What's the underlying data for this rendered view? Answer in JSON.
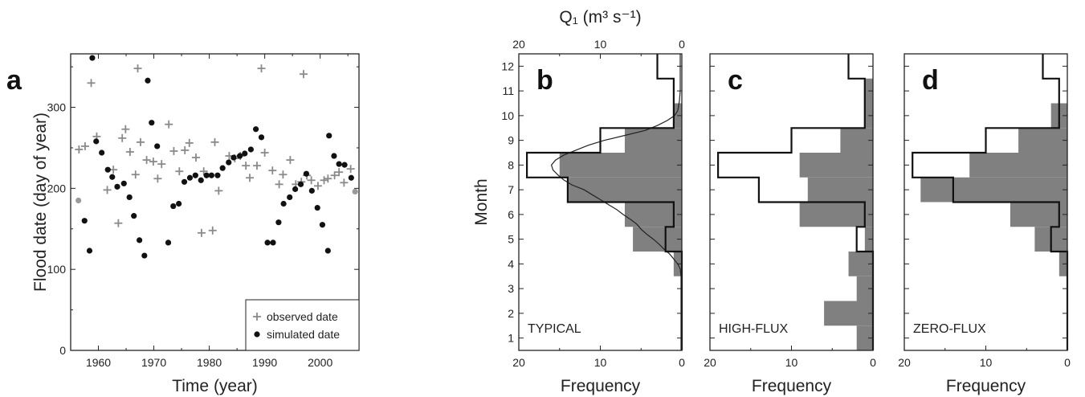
{
  "chart_data": [
    {
      "type": "scatter",
      "panel_label": "a",
      "xlabel": "Time (year)",
      "ylabel": "Flood date (day of year)",
      "xlim": [
        1955,
        2007
      ],
      "ylim": [
        0,
        366
      ],
      "xticks": [
        1960,
        1970,
        1980,
        1990,
        2000
      ],
      "yticks": [
        0,
        100,
        200,
        300
      ],
      "legend_placement": "bottom-right",
      "series": [
        {
          "name": "observed date",
          "marker": "plus",
          "color": "#8a8a8a",
          "points": [
            [
              1956.5,
              248
            ],
            [
              1957.6,
              252
            ],
            [
              1958.7,
              330
            ],
            [
              1959.7,
              264
            ],
            [
              1961.6,
              198
            ],
            [
              1962.7,
              223
            ],
            [
              1963.6,
              157
            ],
            [
              1964.3,
              262
            ],
            [
              1964.9,
              273
            ],
            [
              1965.7,
              245
            ],
            [
              1966.7,
              217
            ],
            [
              1967.1,
              348
            ],
            [
              1967.6,
              257
            ],
            [
              1968.7,
              235
            ],
            [
              1969.9,
              233
            ],
            [
              1970.7,
              212
            ],
            [
              1971.4,
              230
            ],
            [
              1972.7,
              279
            ],
            [
              1973.6,
              246
            ],
            [
              1974.6,
              221
            ],
            [
              1975.6,
              247
            ],
            [
              1976.4,
              256
            ],
            [
              1977.6,
              238
            ],
            [
              1978.6,
              145
            ],
            [
              1979.0,
              221
            ],
            [
              1980.6,
              148
            ],
            [
              1981.0,
              257
            ],
            [
              1981.7,
              197
            ],
            [
              1983.6,
              240
            ],
            [
              1984.6,
              237
            ],
            [
              1985.6,
              240
            ],
            [
              1986.6,
              228
            ],
            [
              1987.3,
              213
            ],
            [
              1988.6,
              228
            ],
            [
              1989.4,
              348
            ],
            [
              1990.0,
              244
            ],
            [
              1991.4,
              222
            ],
            [
              1992.6,
              205
            ],
            [
              1993.3,
              217
            ],
            [
              1994.6,
              235
            ],
            [
              1995.6,
              205
            ],
            [
              1996.6,
              208
            ],
            [
              1997.0,
              341
            ],
            [
              1997.6,
              216
            ],
            [
              1998.4,
              210
            ],
            [
              1999.6,
              203
            ],
            [
              2000.7,
              210
            ],
            [
              2001.4,
              212
            ],
            [
              2002.6,
              216
            ],
            [
              2003.4,
              220
            ],
            [
              2004.3,
              207
            ],
            [
              2005.5,
              224
            ]
          ]
        },
        {
          "name": "simulated date",
          "marker": "circle",
          "color": "#111111",
          "points": [
            [
              1957.5,
              160
            ],
            [
              1958.4,
              123
            ],
            [
              1958.9,
              361
            ],
            [
              1959.6,
              258
            ],
            [
              1960.6,
              244
            ],
            [
              1961.7,
              223
            ],
            [
              1962.5,
              214
            ],
            [
              1963.4,
              202
            ],
            [
              1964.6,
              206
            ],
            [
              1965.6,
              189
            ],
            [
              1966.4,
              166
            ],
            [
              1967.4,
              136
            ],
            [
              1968.3,
              117
            ],
            [
              1968.9,
              333
            ],
            [
              1969.6,
              281
            ],
            [
              1970.6,
              252
            ],
            [
              1972.6,
              133
            ],
            [
              1973.5,
              178
            ],
            [
              1974.5,
              181
            ],
            [
              1975.5,
              208
            ],
            [
              1976.5,
              213
            ],
            [
              1977.5,
              216
            ],
            [
              1978.5,
              210
            ],
            [
              1979.5,
              216
            ],
            [
              1980.4,
              216
            ],
            [
              1981.5,
              216
            ],
            [
              1982.4,
              225
            ],
            [
              1983.5,
              232
            ],
            [
              1984.4,
              238
            ],
            [
              1985.5,
              240
            ],
            [
              1986.4,
              243
            ],
            [
              1987.5,
              248
            ],
            [
              1988.4,
              273
            ],
            [
              1989.4,
              263
            ],
            [
              1990.5,
              133
            ],
            [
              1991.5,
              133
            ],
            [
              1992.5,
              158
            ],
            [
              1993.4,
              181
            ],
            [
              1994.5,
              189
            ],
            [
              1995.5,
              199
            ],
            [
              1996.5,
              205
            ],
            [
              1997.5,
              218
            ],
            [
              1998.5,
              197
            ],
            [
              1999.5,
              176
            ],
            [
              2000.4,
              155
            ],
            [
              2001.4,
              123
            ],
            [
              2001.6,
              265
            ],
            [
              2002.5,
              240
            ],
            [
              2003.4,
              230
            ],
            [
              2004.4,
              229
            ],
            [
              2005.6,
              213
            ]
          ]
        },
        {
          "name": "",
          "marker": "circle",
          "color": "#9a9a9a",
          "points": [
            [
              1956.4,
              185
            ],
            [
              2006.3,
              196
            ]
          ]
        }
      ]
    },
    {
      "type": "bar",
      "orientation": "horizontal",
      "panel_label": "b",
      "panel_title": "TYPICAL",
      "ylabel": "Month",
      "xlabel": "Frequency",
      "top_axis_label": "Q₁ (m³ s⁻¹)",
      "top_axis_ticks": [
        20,
        10,
        0
      ],
      "top_axis_lim": [
        20,
        0
      ],
      "xlim": [
        20,
        0
      ],
      "xticks": [
        20,
        10,
        0
      ],
      "ylim": [
        0.5,
        12.5
      ],
      "yticks": [
        1,
        2,
        3,
        4,
        5,
        6,
        7,
        8,
        9,
        10,
        11,
        12
      ],
      "series": [
        {
          "name": "",
          "style": "filled",
          "color": "#808080",
          "values": [
            0,
            0,
            0,
            1,
            6,
            7,
            14,
            15,
            7,
            1,
            0,
            0
          ]
        },
        {
          "name": "",
          "style": "outline",
          "color": "#111111",
          "values": [
            0,
            0,
            0,
            0,
            2,
            1,
            14,
            19,
            10,
            1,
            1,
            3
          ]
        },
        {
          "name": "",
          "style": "line",
          "color": "#222222",
          "points": [
            [
              0.1,
              0.5
            ],
            [
              0.1,
              3.5
            ],
            [
              0.2,
              3.8
            ],
            [
              0.5,
              4.0
            ],
            [
              1.0,
              4.2
            ],
            [
              1.5,
              4.4
            ],
            [
              2.2,
              4.6
            ],
            [
              2.8,
              4.8
            ],
            [
              3.5,
              5.0
            ],
            [
              4.3,
              5.2
            ],
            [
              5.0,
              5.4
            ],
            [
              5.5,
              5.6
            ],
            [
              6.3,
              5.8
            ],
            [
              7.2,
              6.0
            ],
            [
              8.0,
              6.2
            ],
            [
              9.0,
              6.4
            ],
            [
              10.0,
              6.6
            ],
            [
              11.0,
              6.8
            ],
            [
              12.0,
              7.0
            ],
            [
              13.5,
              7.2
            ],
            [
              14.5,
              7.4
            ],
            [
              15.2,
              7.6
            ],
            [
              15.8,
              7.8
            ],
            [
              16.0,
              8.0
            ],
            [
              15.5,
              8.2
            ],
            [
              14.5,
              8.4
            ],
            [
              13.0,
              8.6
            ],
            [
              11.5,
              8.8
            ],
            [
              9.5,
              9.0
            ],
            [
              7.0,
              9.2
            ],
            [
              4.5,
              9.4
            ],
            [
              3.0,
              9.6
            ],
            [
              1.8,
              9.8
            ],
            [
              0.9,
              10.0
            ],
            [
              0.5,
              10.2
            ],
            [
              0.3,
              10.6
            ],
            [
              0.2,
              11.0
            ],
            [
              0.2,
              11.5
            ],
            [
              0.2,
              12.0
            ],
            [
              0.2,
              12.5
            ]
          ]
        }
      ]
    },
    {
      "type": "bar",
      "orientation": "horizontal",
      "panel_label": "c",
      "panel_title": "HIGH-FLUX",
      "xlabel": "Frequency",
      "xlim": [
        20,
        0
      ],
      "xticks": [
        20,
        10,
        0
      ],
      "ylim": [
        0.5,
        12.5
      ],
      "series": [
        {
          "name": "",
          "style": "filled",
          "color": "#808080",
          "values": [
            2,
            6,
            2,
            3,
            1,
            9,
            8,
            9,
            4,
            1,
            1,
            0
          ]
        },
        {
          "name": "",
          "style": "outline",
          "color": "#111111",
          "values": [
            0,
            0,
            0,
            0,
            2,
            1,
            14,
            19,
            10,
            1,
            1,
            3
          ]
        }
      ]
    },
    {
      "type": "bar",
      "orientation": "horizontal",
      "panel_label": "d",
      "panel_title": "ZERO-FLUX",
      "xlabel": "Frequency",
      "xlim": [
        20,
        0
      ],
      "xticks": [
        20,
        10,
        0
      ],
      "ylim": [
        0.5,
        12.5
      ],
      "series": [
        {
          "name": "",
          "style": "filled",
          "color": "#808080",
          "values": [
            0,
            0,
            0,
            1,
            4,
            7,
            18,
            12,
            6,
            2,
            0,
            0
          ]
        },
        {
          "name": "",
          "style": "outline",
          "color": "#111111",
          "values": [
            0,
            0,
            0,
            0,
            2,
            1,
            14,
            19,
            10,
            1,
            1,
            3
          ]
        }
      ]
    }
  ]
}
